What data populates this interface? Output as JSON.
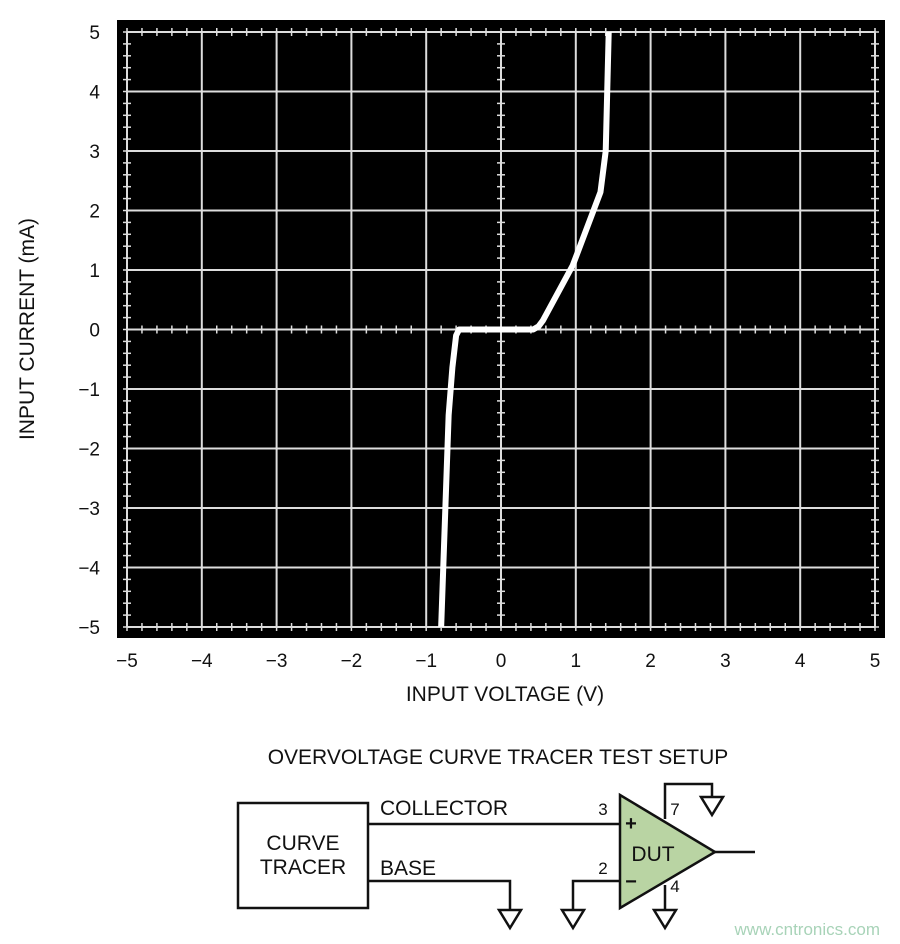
{
  "chart_data": {
    "type": "line",
    "xlabel": "INPUT VOLTAGE (V)",
    "ylabel": "INPUT CURRENT (mA)",
    "xlim": [
      -5,
      5
    ],
    "ylim": [
      -5,
      5
    ],
    "grid": true,
    "background": "#000000",
    "line_color": "#ffffff",
    "x_ticks": [
      "-5",
      "-4",
      "-3",
      "-2",
      "-1",
      "0",
      "1",
      "2",
      "3",
      "4",
      "5"
    ],
    "y_ticks": [
      "5",
      "4",
      "3",
      "2",
      "1",
      "0",
      "-1",
      "-2",
      "-3",
      "-4",
      "-5"
    ],
    "series": [
      {
        "points": [
          [
            -0.8,
            -5
          ],
          [
            -0.7,
            -1.44
          ],
          [
            -0.65,
            -0.64
          ],
          [
            -0.6,
            -0.1
          ],
          [
            -0.56,
            0
          ],
          [
            0.43,
            0
          ],
          [
            0.5,
            0.05
          ],
          [
            0.56,
            0.15
          ],
          [
            0.96,
            1.08
          ],
          [
            1.33,
            2.31
          ],
          [
            1.4,
            3.0
          ],
          [
            1.44,
            5
          ]
        ]
      }
    ]
  },
  "diagram": {
    "title": "OVERVOLTAGE CURVE TRACER TEST SETUP",
    "box_line1": "CURVE",
    "box_line2": "TRACER",
    "collector": "COLLECTOR",
    "base": "BASE",
    "dut": "DUT",
    "pin3": "3",
    "pin2": "2",
    "pin7": "7",
    "pin4": "4",
    "plus": "+",
    "minus": "−",
    "dut_fill": "#b9d4a3"
  },
  "watermark": "www.cntronics.com"
}
